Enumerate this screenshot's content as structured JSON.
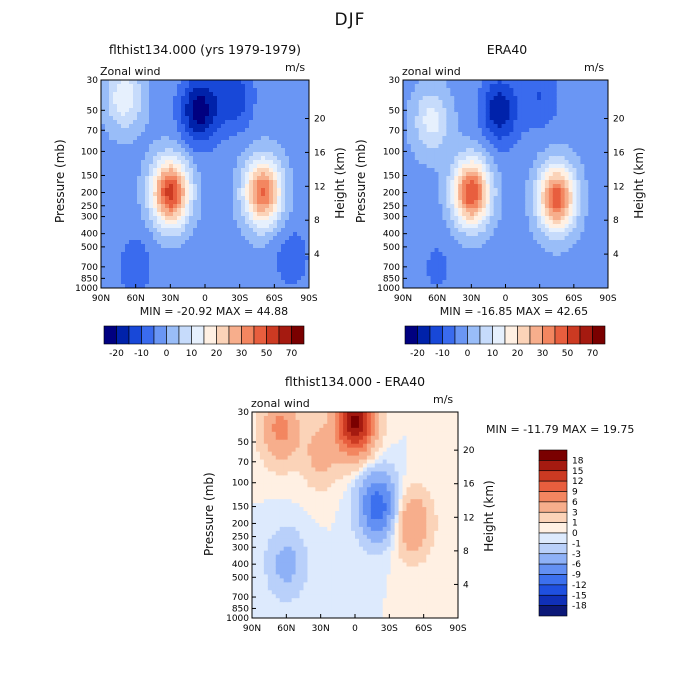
{
  "page_title": "DJF",
  "colors": {
    "palette_main": [
      "#000080",
      "#0022aa",
      "#1848d8",
      "#3a6bee",
      "#6a96f4",
      "#99bdf8",
      "#c6dbfb",
      "#e6f0fd",
      "#fff0e3",
      "#fbd3b8",
      "#f7ae8c",
      "#f38660",
      "#e85e3e",
      "#cc3a22",
      "#a51a10",
      "#7a0000"
    ],
    "palette_diff": [
      "#0c1878",
      "#1030b8",
      "#1f50e0",
      "#3c70ee",
      "#6390f3",
      "#8eb1f7",
      "#b9d0fa",
      "#ddeafd",
      "#fff0e3",
      "#fbd3b8",
      "#f7ae8c",
      "#f38660",
      "#e85e3e",
      "#cc3a22",
      "#a51a10",
      "#7a0000"
    ]
  },
  "chart_data": [
    {
      "id": "model",
      "type": "heatmap",
      "title": "flthist134.000 (yrs 1979-1979)",
      "left_label": "Zonal wind",
      "units": "m/s",
      "ylabel": "Pressure (mb)",
      "ylabel_right": "Height (km)",
      "x_ticks": [
        "90N",
        "60N",
        "30N",
        "0",
        "30S",
        "60S",
        "90S"
      ],
      "y_ticks": [
        "30",
        "50",
        "70",
        "100",
        "150",
        "200",
        "250",
        "300",
        "400",
        "500",
        "700",
        "850",
        "1000"
      ],
      "y_ticks_right": [
        "4",
        "8",
        "12",
        "16",
        "20"
      ],
      "stats": "MIN = -20.92   MAX =  44.88",
      "min": -20.92,
      "max": 44.88,
      "colorbar_labels": [
        "-20",
        "-10",
        "0",
        "10",
        "20",
        "30",
        "50",
        "70"
      ],
      "features": [
        {
          "lat": 30,
          "p": 200,
          "value": 44
        },
        {
          "lat": -50,
          "p": 200,
          "value": 38
        },
        {
          "lat": 70,
          "p": 40,
          "value": 16
        },
        {
          "lat": 5,
          "p": 50,
          "value": -21
        },
        {
          "lat": -25,
          "p": 40,
          "value": -12
        },
        {
          "lat": 60,
          "p": 700,
          "value": -6
        },
        {
          "lat": -75,
          "p": 600,
          "value": -6
        }
      ]
    },
    {
      "id": "obs",
      "type": "heatmap",
      "title": "ERA40",
      "left_label": "zonal wind",
      "units": "m/s",
      "ylabel": "Pressure (mb)",
      "ylabel_right": "Height (km)",
      "x_ticks": [
        "90N",
        "60N",
        "30N",
        "0",
        "30S",
        "60S",
        "90S"
      ],
      "y_ticks": [
        "30",
        "50",
        "70",
        "100",
        "150",
        "200",
        "250",
        "300",
        "400",
        "500",
        "700",
        "850",
        "1000"
      ],
      "y_ticks_right": [
        "4",
        "8",
        "12",
        "16",
        "20"
      ],
      "stats": "MIN = -16.85   MAX =  42.65",
      "min": -16.85,
      "max": 42.65,
      "colorbar_labels": [
        "-20",
        "-10",
        "0",
        "10",
        "20",
        "30",
        "50",
        "70"
      ],
      "features": [
        {
          "lat": 30,
          "p": 200,
          "value": 42
        },
        {
          "lat": -45,
          "p": 220,
          "value": 40
        },
        {
          "lat": 65,
          "p": 60,
          "value": 14
        },
        {
          "lat": 5,
          "p": 50,
          "value": -17
        },
        {
          "lat": -30,
          "p": 40,
          "value": -8
        },
        {
          "lat": 60,
          "p": 700,
          "value": -4
        }
      ]
    },
    {
      "id": "diff",
      "type": "heatmap",
      "title": "flthist134.000 - ERA40",
      "left_label": "zonal wind",
      "units": "m/s",
      "ylabel": "Pressure (mb)",
      "ylabel_right": "Height (km)",
      "x_ticks": [
        "90N",
        "60N",
        "30N",
        "0",
        "30S",
        "60S",
        "90S"
      ],
      "y_ticks": [
        "30",
        "50",
        "70",
        "100",
        "150",
        "200",
        "250",
        "300",
        "400",
        "500",
        "700",
        "850",
        "1000"
      ],
      "y_ticks_right": [
        "4",
        "8",
        "12",
        "16",
        "20"
      ],
      "stats": "MIN = -11.79   MAX =  19.75",
      "min": -11.79,
      "max": 19.75,
      "colorbar_labels": [
        "18",
        "15",
        "12",
        "9",
        "6",
        "3",
        "1",
        "0",
        "-1",
        "-3",
        "-6",
        "-9",
        "-12",
        "-15",
        "-18"
      ],
      "features": [
        {
          "lat": 0,
          "p": 35,
          "value": 19
        },
        {
          "lat": 65,
          "p": 40,
          "value": 7
        },
        {
          "lat": -50,
          "p": 200,
          "value": 6
        },
        {
          "lat": -20,
          "p": 150,
          "value": -11
        },
        {
          "lat": 60,
          "p": 400,
          "value": -4
        },
        {
          "lat": 30,
          "p": 60,
          "value": 4
        }
      ]
    }
  ]
}
